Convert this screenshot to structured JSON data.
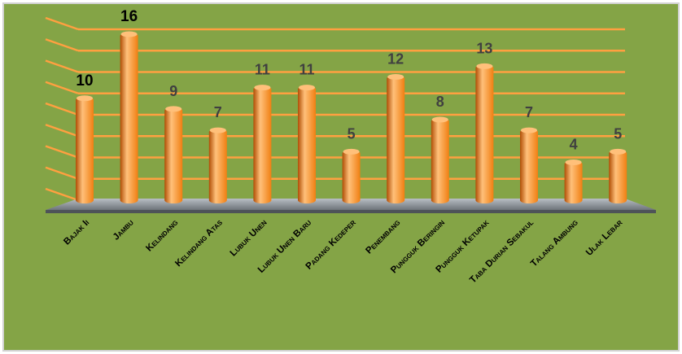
{
  "chart_data": {
    "type": "bar",
    "categories": [
      "Bajak Ii",
      "Jambu",
      "Kelindang",
      "Kelindang Atas",
      "Lubuk Unen",
      "Lubuk Unen Baru",
      "Padang Kedeper",
      "Penembang",
      "Pungguk Beringin",
      "Pungguk Ketupak",
      "Taba Durian Sebakul",
      "Talang Ambung",
      "Ulak Lebar"
    ],
    "values": [
      10,
      16,
      9,
      7,
      11,
      11,
      5,
      12,
      8,
      13,
      7,
      4,
      5
    ],
    "ylim": [
      0,
      16
    ],
    "grid": true,
    "legend": "none",
    "colors": {
      "background": "#84A446",
      "border": "#D2D2D2",
      "bar": "#F07F12",
      "bar_light": "#FFC07A",
      "bar_dark": "#B04E05",
      "gridline": "#FFA040",
      "floor": "#8A9098",
      "label_dark": "#000000",
      "label_muted": "#404040"
    }
  }
}
